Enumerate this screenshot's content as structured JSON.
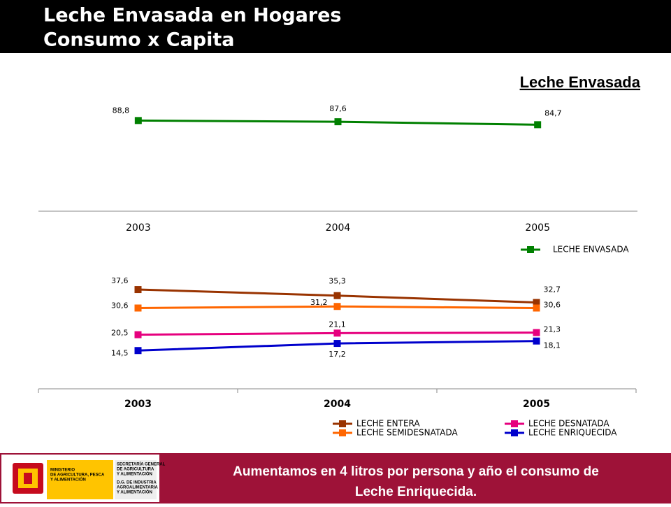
{
  "header": {
    "title_line1": "Leche Envasada en Hogares",
    "title_line2": "Consumo x Capita"
  },
  "subtitle": "Leche Envasada",
  "chart_data": [
    {
      "type": "line",
      "categories": [
        "2003",
        "2004",
        "2005"
      ],
      "ylim": [
        0,
        100
      ],
      "category_bold": false,
      "series": [
        {
          "name": "LECHE ENVASADA",
          "color": "#008000",
          "values": [
            88.8,
            87.6,
            84.7
          ],
          "value_labels": [
            "88,8",
            "87,6",
            "84,7"
          ]
        }
      ]
    },
    {
      "type": "line",
      "categories": [
        "2003",
        "2004",
        "2005"
      ],
      "ylim": [
        0,
        40
      ],
      "category_bold": true,
      "series": [
        {
          "name": "LECHE ENTERA",
          "color": "#993300",
          "values": [
            37.6,
            35.3,
            32.7
          ],
          "value_labels": [
            "37,6",
            "35,3",
            "32,7"
          ]
        },
        {
          "name": "LECHE SEMIDESNATADA",
          "color": "#FF6600",
          "values": [
            30.6,
            31.2,
            30.6
          ],
          "value_labels": [
            "30,6",
            "31,2",
            "30,6"
          ]
        },
        {
          "name": "LECHE DESNATADA",
          "color": "#E6007E",
          "values": [
            20.5,
            21.1,
            21.3
          ],
          "value_labels": [
            "20,5",
            "21,1",
            "21,3"
          ]
        },
        {
          "name": "LECHE ENRIQUECIDA",
          "color": "#0000CC",
          "values": [
            14.5,
            17.2,
            18.1
          ],
          "value_labels": [
            "14,5",
            "17,2",
            "18,1"
          ]
        }
      ]
    }
  ],
  "footer": {
    "logo_ministry": [
      "MINISTERIO",
      "DE AGRICULTURA, PESCA",
      "Y ALIMENTACIÓN"
    ],
    "logo_secretaria": [
      "SECRETARÍA GENERAL",
      "DE AGRICULTURA",
      "Y ALIMENTACIÓN"
    ],
    "logo_dg": [
      "D.G. DE INDUSTRIA",
      "AGROALIMENTARIA",
      "Y ALIMENTACIÓN"
    ],
    "message_line1": "Aumentamos en 4 litros por persona y año el consumo de",
    "message_line2": "Leche Enriquecida."
  }
}
